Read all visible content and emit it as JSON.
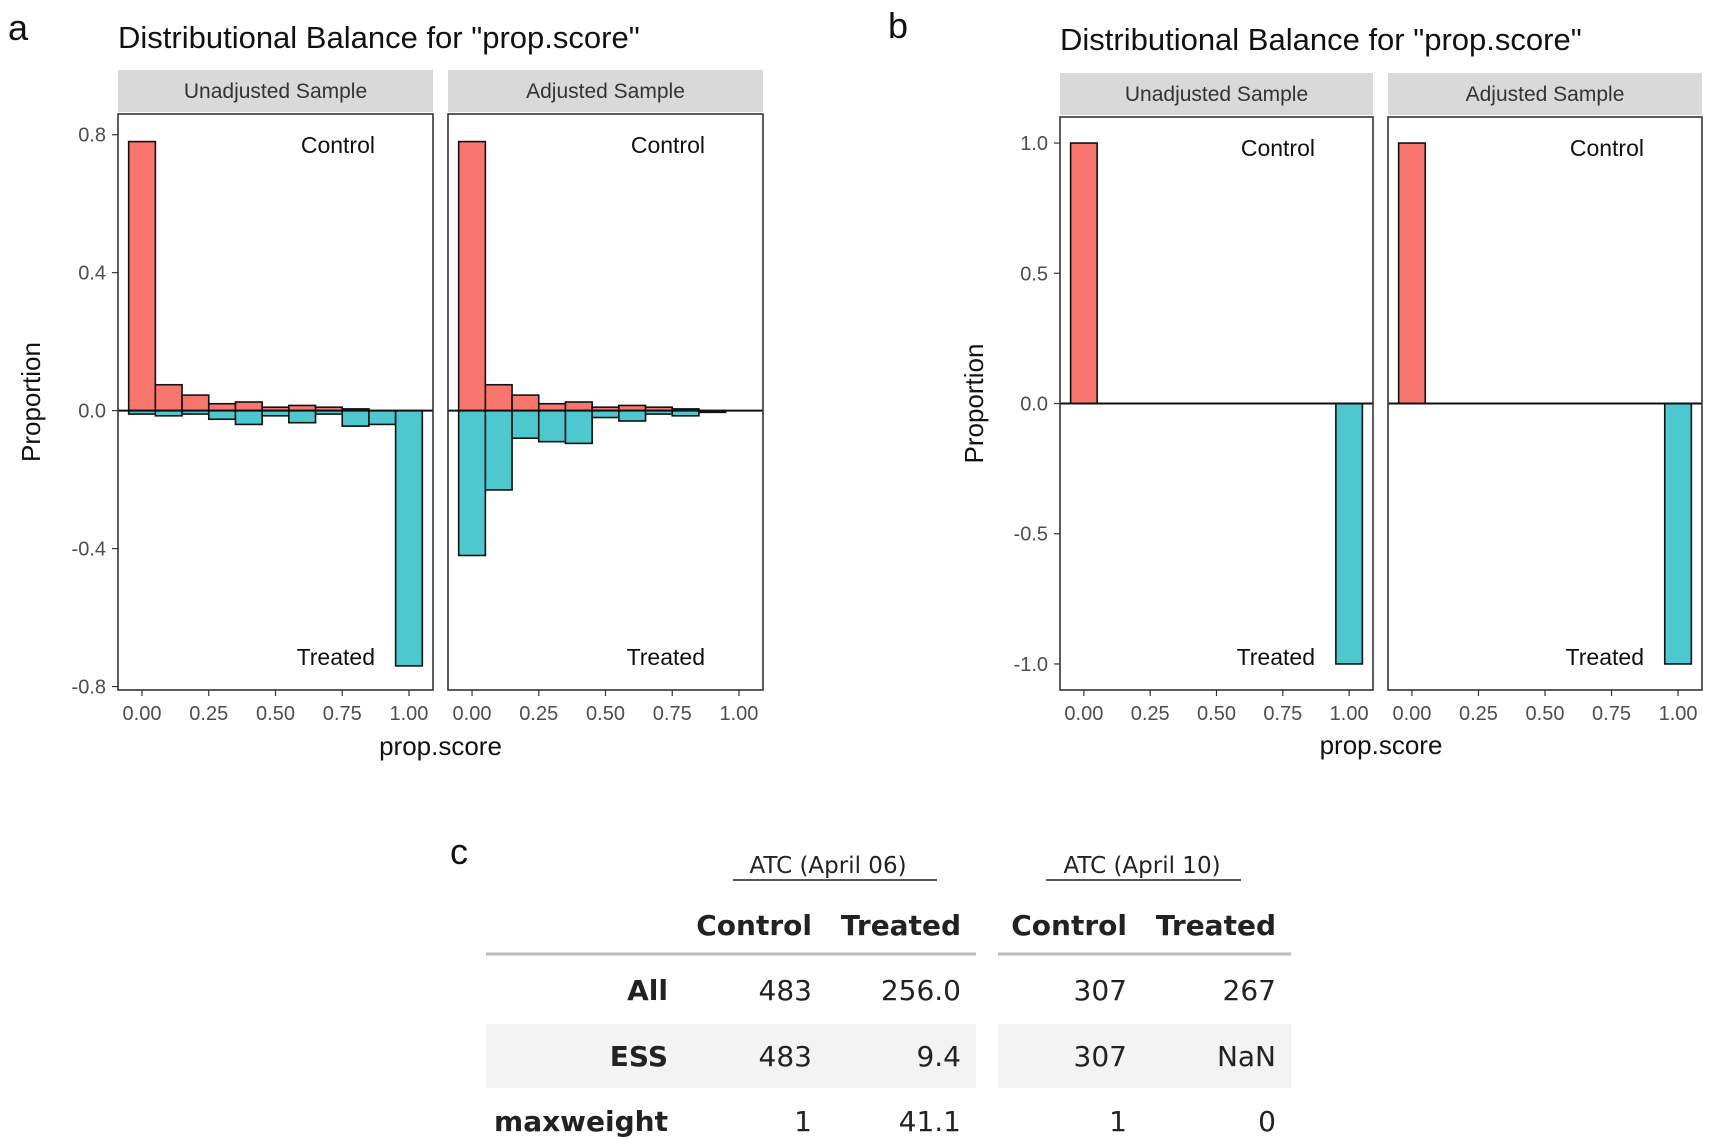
{
  "panels": [
    {
      "letter": "a"
    },
    {
      "letter": "b"
    },
    {
      "letter": "c"
    }
  ],
  "colors": {
    "control": "#F8766D",
    "treated": "#4DC8CF",
    "strip": "#d9d9d9",
    "row_shade": "#f3f3f3"
  },
  "chart_data": [
    {
      "type": "bar",
      "title": "Distributional Balance for \"prop.score\"",
      "xlabel": "prop.score",
      "ylabel": "Proportion",
      "facets": [
        "Unadjusted Sample",
        "Adjusted Sample"
      ],
      "annotations": {
        "top": "Control",
        "bottom": "Treated"
      },
      "xlim": [
        -0.09,
        1.09
      ],
      "ylim": [
        -0.81,
        0.86
      ],
      "xticks": [
        "0.00",
        "0.25",
        "0.50",
        "0.75",
        "1.00"
      ],
      "xtick_values": [
        0,
        0.25,
        0.5,
        0.75,
        1
      ],
      "yticks": [
        "0.8",
        "0.4",
        "0.0",
        "-0.4",
        "-0.8"
      ],
      "ytick_values": [
        0.8,
        0.4,
        0,
        -0.4,
        -0.8
      ],
      "bin_width": 0.1,
      "bin_centers": [
        0,
        0.1,
        0.2,
        0.3,
        0.4,
        0.5,
        0.6,
        0.7,
        0.8,
        0.9,
        1.0
      ],
      "grid": false,
      "series_by_facet": [
        {
          "facet": "Unadjusted Sample",
          "control": [
            0.78,
            0.075,
            0.045,
            0.02,
            0.025,
            0.01,
            0.015,
            0.01,
            0.005,
            0.0,
            0.0
          ],
          "treated": [
            -0.01,
            -0.015,
            -0.01,
            -0.025,
            -0.04,
            -0.015,
            -0.035,
            -0.01,
            -0.045,
            -0.04,
            -0.74
          ]
        },
        {
          "facet": "Adjusted Sample",
          "control": [
            0.78,
            0.075,
            0.045,
            0.02,
            0.025,
            0.01,
            0.015,
            0.01,
            0.005,
            0.0,
            0.0
          ],
          "treated": [
            -0.42,
            -0.23,
            -0.08,
            -0.09,
            -0.095,
            -0.02,
            -0.03,
            -0.01,
            -0.015,
            -0.005,
            0.0
          ]
        }
      ]
    },
    {
      "type": "bar",
      "title": "Distributional Balance for \"prop.score\"",
      "xlabel": "prop.score",
      "ylabel": "Proportion",
      "facets": [
        "Unadjusted Sample",
        "Adjusted Sample"
      ],
      "annotations": {
        "top": "Control",
        "bottom": "Treated"
      },
      "xlim": [
        -0.09,
        1.09
      ],
      "ylim": [
        -1.1,
        1.1
      ],
      "xticks": [
        "0.00",
        "0.25",
        "0.50",
        "0.75",
        "1.00"
      ],
      "xtick_values": [
        0,
        0.25,
        0.5,
        0.75,
        1
      ],
      "yticks": [
        "1.0",
        "0.5",
        "0.0",
        "-0.5",
        "-1.0"
      ],
      "ytick_values": [
        1.0,
        0.5,
        0,
        -0.5,
        -1.0
      ],
      "bin_width": 0.1,
      "bin_centers": [
        0,
        1.0
      ],
      "grid": false,
      "series_by_facet": [
        {
          "facet": "Unadjusted Sample",
          "control": [
            1.0,
            0.0
          ],
          "treated": [
            0.0,
            -1.0
          ]
        },
        {
          "facet": "Adjusted Sample",
          "control": [
            1.0,
            0.0
          ],
          "treated": [
            0.0,
            -1.0
          ]
        }
      ]
    },
    {
      "type": "table",
      "groups": [
        "ATC (April 06)",
        "ATC (April 10)"
      ],
      "columns": [
        "Control",
        "Treated",
        "Control",
        "Treated"
      ],
      "rows": [
        {
          "label": "All",
          "values": [
            "483",
            "256.0",
            "307",
            "267"
          ]
        },
        {
          "label": "ESS",
          "values": [
            "483",
            "9.4",
            "307",
            "NaN"
          ]
        },
        {
          "label": "maxweight",
          "values": [
            "1",
            "41.1",
            "1",
            "0"
          ]
        }
      ]
    }
  ]
}
